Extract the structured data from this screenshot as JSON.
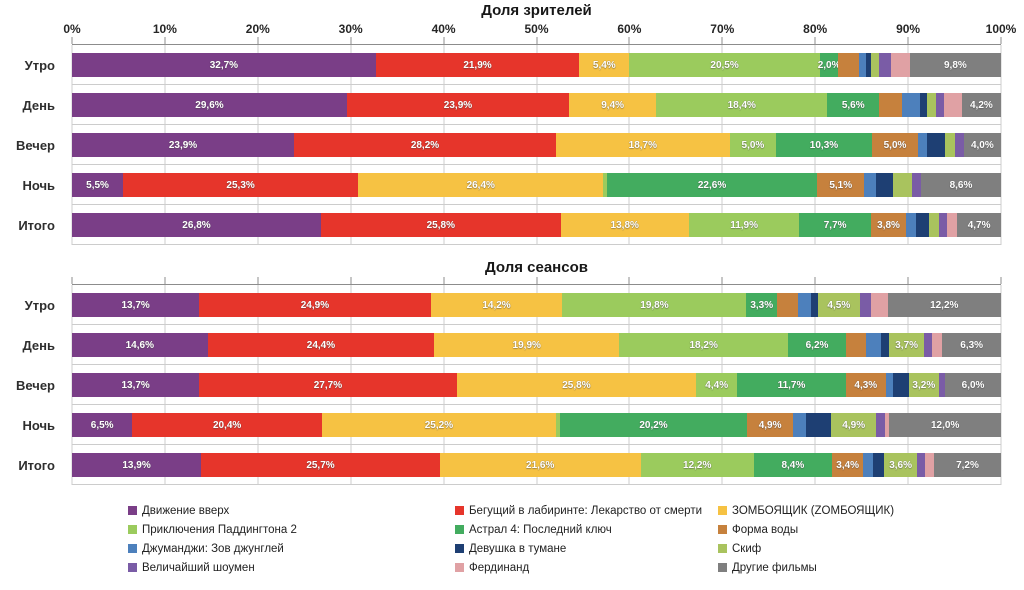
{
  "films": [
    {
      "name": "Движение вверх",
      "color": "#7A3E87"
    },
    {
      "name": "Бегущий в лабиринте: Лекарство от смерти",
      "color": "#E6352B"
    },
    {
      "name": "ЗОМБОЯЩИК (ZОМБОЯЩИК)",
      "color": "#F6C243"
    },
    {
      "name": "Приключения Паддингтона 2",
      "color": "#9BCB5D"
    },
    {
      "name": "Астрал 4: Последний ключ",
      "color": "#43AC5F"
    },
    {
      "name": "Форма воды",
      "color": "#C6813D"
    },
    {
      "name": "Джуманджи: Зов джунглей",
      "color": "#4D80BC"
    },
    {
      "name": "Девушка в тумане",
      "color": "#1E3F73"
    },
    {
      "name": "Скиф",
      "color": "#A9C35E"
    },
    {
      "name": "Величайший шоумен",
      "color": "#7A5CA6"
    },
    {
      "name": "Фердинанд",
      "color": "#E0A1A4"
    },
    {
      "name": "Другие фильмы",
      "color": "#7F7F7F"
    }
  ],
  "chart_data": [
    {
      "type": "bar",
      "stacked": true,
      "orientation": "horizontal",
      "title": "Доля зрителей",
      "categories": [
        "Утро",
        "День",
        "Вечер",
        "Ночь",
        "Итого"
      ],
      "axis": {
        "min": 0,
        "max": 100,
        "step": 10,
        "show_tick_labels": true,
        "tick_labels": [
          "0%",
          "10%",
          "20%",
          "30%",
          "40%",
          "50%",
          "60%",
          "70%",
          "80%",
          "90%",
          "100%"
        ]
      },
      "legend_position": "bottom",
      "grid": true,
      "rows": [
        {
          "category": "Утро",
          "values": [
            32.7,
            21.9,
            5.4,
            20.5,
            2.0,
            2.2,
            0.8,
            0.5,
            0.9,
            1.3,
            2.0,
            9.8
          ],
          "labels": [
            "32,7%",
            "21,9%",
            "5,4%",
            "20,5%",
            "2,0%",
            null,
            null,
            null,
            null,
            null,
            null,
            "9,8%"
          ]
        },
        {
          "category": "День",
          "values": [
            29.6,
            23.9,
            9.4,
            18.4,
            5.6,
            2.4,
            2.0,
            0.7,
            1.0,
            0.9,
            1.9,
            4.2
          ],
          "labels": [
            "29,6%",
            "23,9%",
            "9,4%",
            "18,4%",
            "5,6%",
            null,
            null,
            null,
            null,
            null,
            null,
            "4,2%"
          ]
        },
        {
          "category": "Вечер",
          "values": [
            23.9,
            28.2,
            18.7,
            5.0,
            10.3,
            5.0,
            0.9,
            2.0,
            1.1,
            0.9,
            0,
            4.0
          ],
          "labels": [
            "23,9%",
            "28,2%",
            "18,7%",
            "5,0%",
            "10,3%",
            "5,0%",
            null,
            null,
            null,
            null,
            null,
            "4,0%"
          ]
        },
        {
          "category": "Ночь",
          "values": [
            5.5,
            25.3,
            26.4,
            0.4,
            22.6,
            5.1,
            1.2,
            1.9,
            2.0,
            1.0,
            0,
            8.6
          ],
          "labels": [
            "5,5%",
            "25,3%",
            "26,4%",
            null,
            "22,6%",
            "5,1%",
            null,
            null,
            null,
            null,
            null,
            "8,6%"
          ]
        },
        {
          "category": "Итого",
          "values": [
            26.8,
            25.8,
            13.8,
            11.9,
            7.7,
            3.8,
            1.1,
            1.4,
            1.0,
            0.9,
            1.1,
            4.7
          ],
          "labels": [
            "26,8%",
            "25,8%",
            "13,8%",
            "11,9%",
            "7,7%",
            "3,8%",
            null,
            null,
            null,
            null,
            null,
            "4,7%"
          ]
        }
      ]
    },
    {
      "type": "bar",
      "stacked": true,
      "orientation": "horizontal",
      "title": "Доля сеансов",
      "categories": [
        "Утро",
        "День",
        "Вечер",
        "Ночь",
        "Итого"
      ],
      "axis": {
        "min": 0,
        "max": 100,
        "step": 10,
        "show_tick_labels": false,
        "tick_labels": []
      },
      "legend_position": "bottom",
      "grid": true,
      "rows": [
        {
          "category": "Утро",
          "values": [
            13.7,
            24.9,
            14.2,
            19.8,
            3.3,
            2.3,
            1.3,
            0.8,
            4.5,
            1.2,
            1.8,
            12.2
          ],
          "labels": [
            "13,7%",
            "24,9%",
            "14,2%",
            "19,8%",
            "3,3%",
            null,
            null,
            null,
            "4,5%",
            null,
            null,
            "12,2%"
          ]
        },
        {
          "category": "День",
          "values": [
            14.6,
            24.4,
            19.9,
            18.2,
            6.2,
            2.2,
            1.6,
            0.9,
            3.7,
            0.9,
            1.1,
            6.3
          ],
          "labels": [
            "14,6%",
            "24,4%",
            "19,9%",
            "18,2%",
            "6,2%",
            null,
            null,
            null,
            "3,7%",
            null,
            null,
            "6,3%"
          ]
        },
        {
          "category": "Вечер",
          "values": [
            13.7,
            27.7,
            25.8,
            4.4,
            11.7,
            4.3,
            0.8,
            1.7,
            3.2,
            0.7,
            0,
            6.0
          ],
          "labels": [
            "13,7%",
            "27,7%",
            "25,8%",
            "4,4%",
            "11,7%",
            "4,3%",
            null,
            null,
            "3,2%",
            null,
            null,
            "6,0%"
          ]
        },
        {
          "category": "Ночь",
          "values": [
            6.5,
            20.4,
            25.2,
            0.4,
            20.2,
            4.9,
            1.4,
            2.7,
            4.9,
            0.9,
            0.5,
            12.0
          ],
          "labels": [
            "6,5%",
            "20,4%",
            "25,2%",
            null,
            "20,2%",
            "4,9%",
            null,
            null,
            "4,9%",
            null,
            null,
            "12,0%"
          ]
        },
        {
          "category": "Итого",
          "values": [
            13.9,
            25.7,
            21.6,
            12.2,
            8.4,
            3.4,
            1.0,
            1.2,
            3.6,
            0.8,
            1.0,
            7.2
          ],
          "labels": [
            "13,9%",
            "25,7%",
            "21,6%",
            "12,2%",
            "8,4%",
            "3,4%",
            null,
            null,
            "3,6%",
            null,
            null,
            "7,2%"
          ]
        }
      ]
    }
  ]
}
